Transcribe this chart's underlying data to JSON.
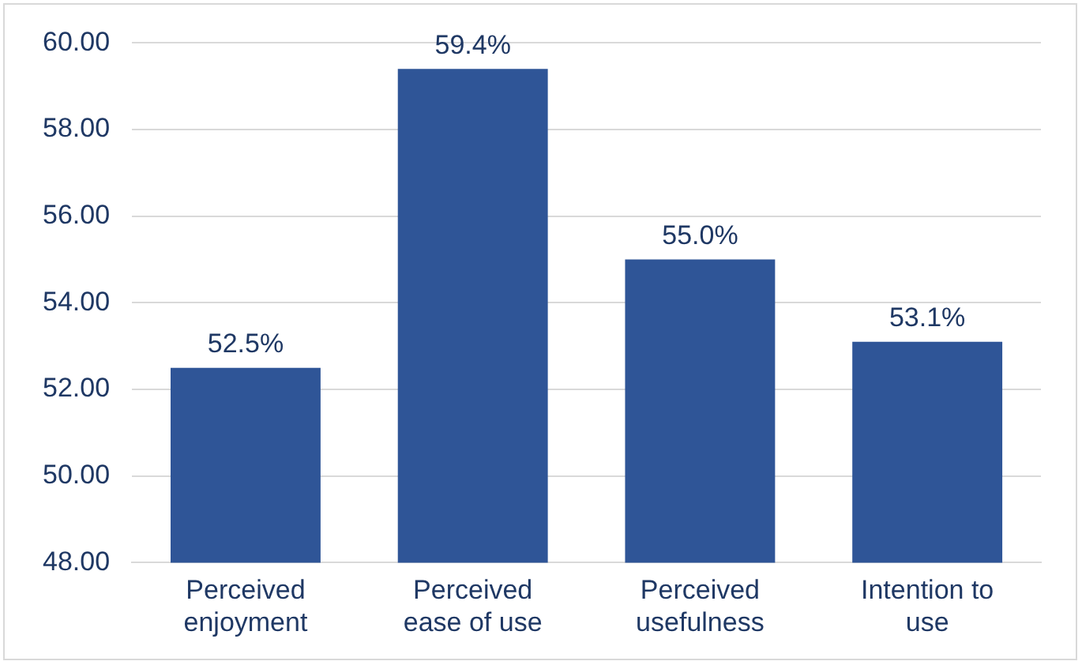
{
  "chart_data": {
    "type": "bar",
    "categories": [
      "Perceived enjoyment",
      "Perceived ease of use",
      "Perceived usefulness",
      "Intention to use"
    ],
    "values": [
      52.5,
      59.4,
      55.0,
      53.1
    ],
    "value_labels": [
      "52.5%",
      "59.4%",
      "55.0%",
      "53.1%"
    ],
    "color": "#2f5597",
    "ylim": [
      48,
      60
    ],
    "yticks": [
      {
        "value": 48,
        "label": "48.00"
      },
      {
        "value": 50,
        "label": "50.00"
      },
      {
        "value": 52,
        "label": "52.00"
      },
      {
        "value": 54,
        "label": "54.00"
      },
      {
        "value": 56,
        "label": "56.00"
      },
      {
        "value": 58,
        "label": "58.00"
      },
      {
        "value": 60,
        "label": "60.00"
      }
    ],
    "grid": "y"
  }
}
